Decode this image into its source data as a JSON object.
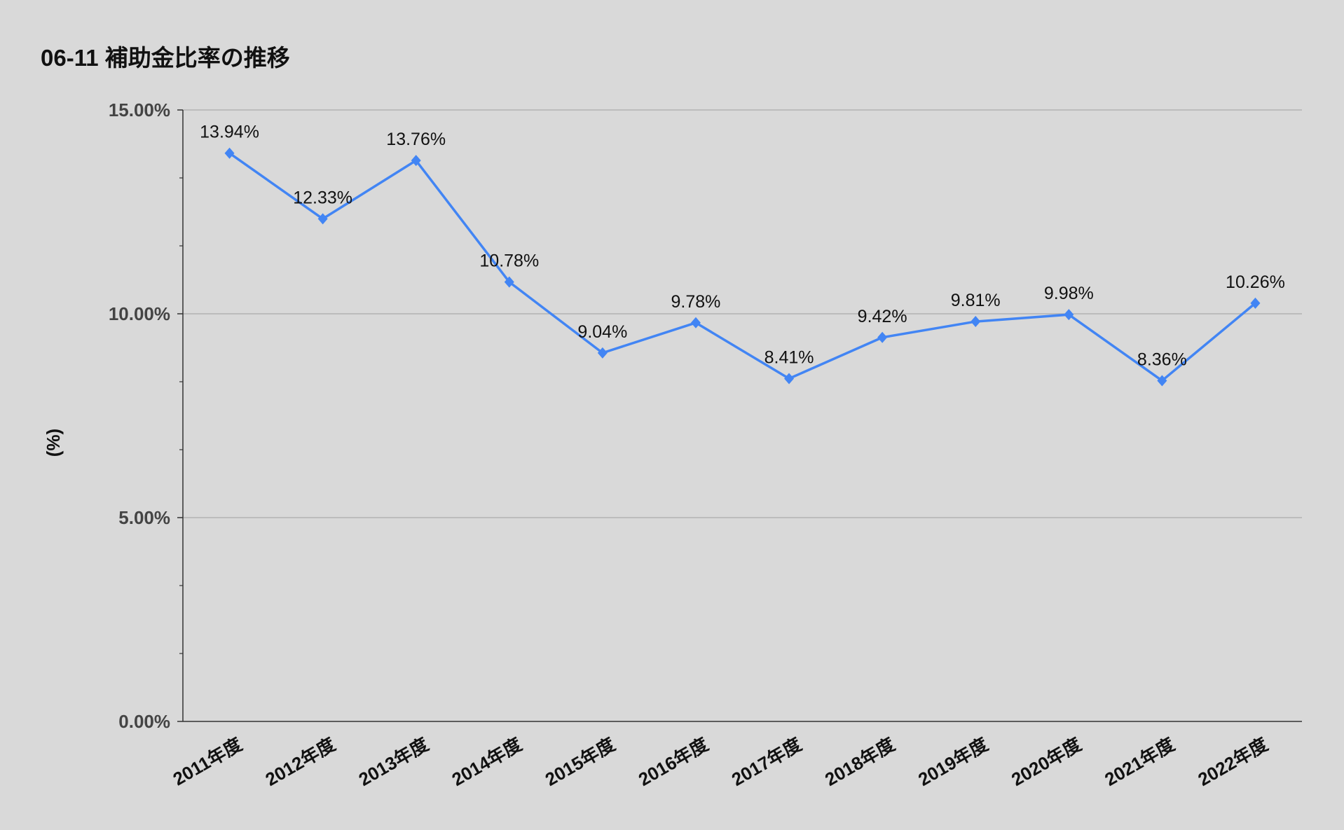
{
  "chart_data": {
    "type": "line",
    "title": "06-11 補助金比率の推移",
    "xlabel": "",
    "ylabel": "(%)",
    "categories": [
      "2011年度",
      "2012年度",
      "2013年度",
      "2014年度",
      "2015年度",
      "2016年度",
      "2017年度",
      "2018年度",
      "2019年度",
      "2020年度",
      "2021年度",
      "2022年度"
    ],
    "series": [
      {
        "name": "補助金比率",
        "values": [
          13.94,
          12.33,
          13.76,
          10.78,
          9.04,
          9.78,
          8.41,
          9.42,
          9.81,
          9.98,
          8.36,
          10.26
        ],
        "color": "#4285f4"
      }
    ],
    "data_labels": [
      "13.94%",
      "12.33%",
      "13.76%",
      "10.78%",
      "9.04%",
      "9.78%",
      "8.41%",
      "9.42%",
      "9.81%",
      "9.98%",
      "8.36%",
      "10.26%"
    ],
    "yticks": [
      0,
      5,
      10,
      15
    ],
    "ytick_labels": [
      "0.00%",
      "5.00%",
      "10.00%",
      "15.00%"
    ],
    "ylim": [
      0,
      15
    ],
    "grid": true,
    "legend": "none"
  }
}
